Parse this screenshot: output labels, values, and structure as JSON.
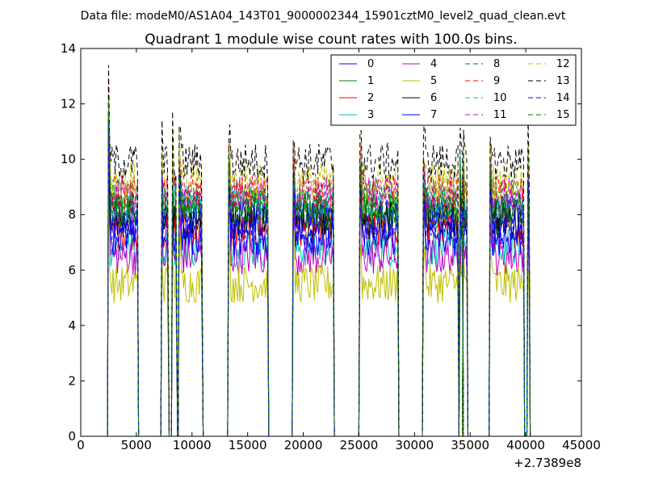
{
  "chart_data": {
    "type": "line",
    "suptitle": "Data file: modeM0/AS1A04_143T01_9000002344_15901cztM0_level2_quad_clean.evt",
    "title": "Quadrant 1 module wise count rates with 100.0s bins.",
    "xlabel": "",
    "ylabel": "",
    "x_offset_label": "+2.7389e8",
    "xlim": [
      0,
      45000
    ],
    "ylim": [
      0,
      14
    ],
    "xticks": [
      0,
      5000,
      10000,
      15000,
      20000,
      25000,
      30000,
      35000,
      40000,
      45000
    ],
    "yticks": [
      0,
      2,
      4,
      6,
      8,
      10,
      12,
      14
    ],
    "grid": false,
    "legend_position": "top-right",
    "segments": [
      [
        2500,
        5100
      ],
      [
        7300,
        7850
      ],
      [
        8250,
        8600
      ],
      [
        8850,
        10900
      ],
      [
        13300,
        16800
      ],
      [
        19100,
        22700
      ],
      [
        25100,
        28500
      ],
      [
        30800,
        33900
      ],
      [
        34100,
        34300
      ],
      [
        34400,
        34700
      ],
      [
        36800,
        39800
      ],
      [
        40200,
        40300
      ]
    ],
    "series": [
      {
        "name": "0",
        "level": 8.0,
        "color": "#0000ff",
        "dash": "solid"
      },
      {
        "name": "1",
        "level": 8.2,
        "color": "#008000",
        "dash": "solid"
      },
      {
        "name": "2",
        "level": 7.4,
        "color": "#ff0000",
        "dash": "solid"
      },
      {
        "name": "3",
        "level": 6.8,
        "color": "#00bfbf",
        "dash": "solid"
      },
      {
        "name": "4",
        "level": 6.5,
        "color": "#bf00bf",
        "dash": "solid"
      },
      {
        "name": "5",
        "level": 5.5,
        "color": "#bfbf00",
        "dash": "solid"
      },
      {
        "name": "6",
        "level": 7.8,
        "color": "#000000",
        "dash": "solid"
      },
      {
        "name": "7",
        "level": 7.2,
        "color": "#0000ff",
        "dash": "solid"
      },
      {
        "name": "8",
        "level": 8.6,
        "color": "#008000",
        "dash": "dashed"
      },
      {
        "name": "9",
        "level": 8.8,
        "color": "#ff0000",
        "dash": "dashed"
      },
      {
        "name": "10",
        "level": 8.4,
        "color": "#00bfbf",
        "dash": "dashed"
      },
      {
        "name": "11",
        "level": 8.7,
        "color": "#bf00bf",
        "dash": "dashed"
      },
      {
        "name": "12",
        "level": 9.2,
        "color": "#bfbf00",
        "dash": "dashed"
      },
      {
        "name": "13",
        "level": 9.9,
        "color": "#000000",
        "dash": "dashed"
      },
      {
        "name": "14",
        "level": 7.6,
        "color": "#0000ff",
        "dash": "dashed"
      },
      {
        "name": "15",
        "level": 8.1,
        "color": "#008000",
        "dash": "dashed"
      }
    ]
  }
}
